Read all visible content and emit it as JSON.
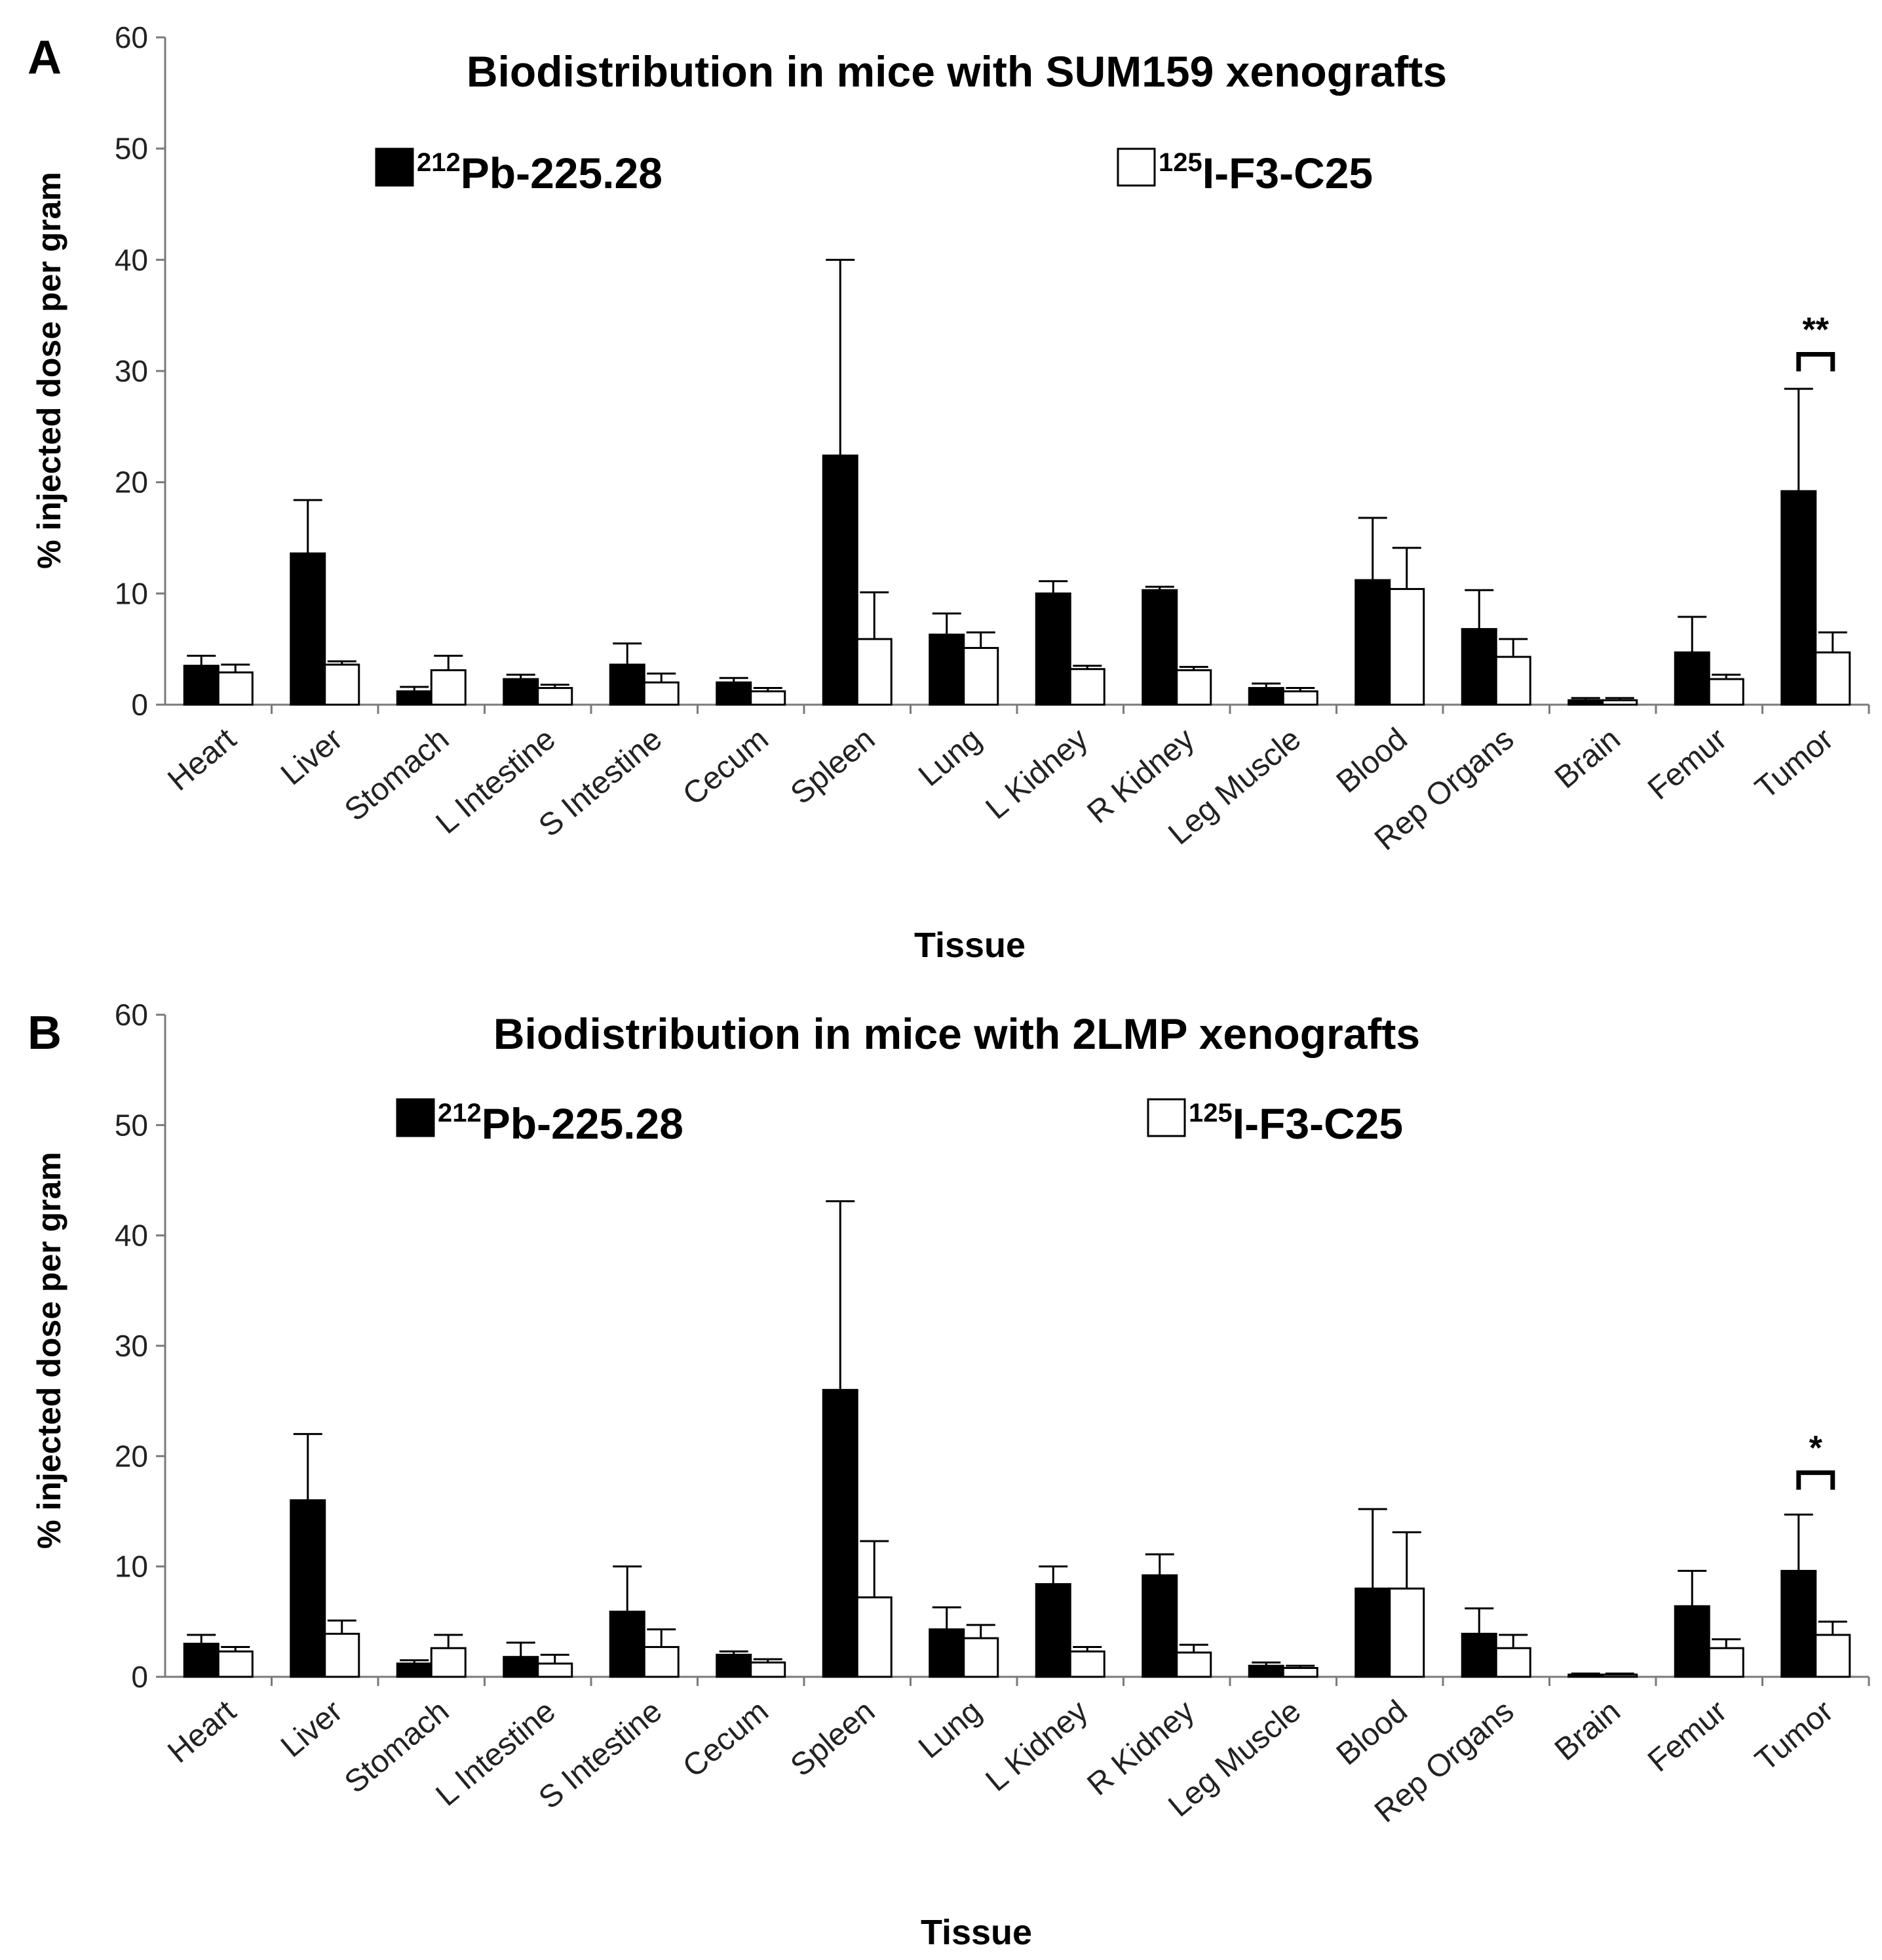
{
  "chart_data": [
    {
      "type": "bar",
      "panel_label": "A",
      "title": "Biodistribution in mice with SUM159 xenografts",
      "xlabel": "Tissue",
      "ylabel": "% injected dose per gram",
      "ylim": [
        0,
        60
      ],
      "yticks": [
        0,
        10,
        20,
        30,
        40,
        50,
        60
      ],
      "grid": false,
      "legend_position": "top",
      "categories": [
        "Heart",
        "Liver",
        "Stomach",
        "L Intestine",
        "S Intestine",
        "Cecum",
        "Spleen",
        "Lung",
        "L Kidney",
        "R Kidney",
        "Leg Muscle",
        "Blood",
        "Rep Organs",
        "Brain",
        "Femur",
        "Tumor"
      ],
      "series": [
        {
          "legend_sup": "212",
          "legend_main": "Pb-225.28",
          "fill": "#000000",
          "values": [
            3.5,
            13.6,
            1.2,
            2.3,
            3.6,
            2.0,
            22.4,
            6.3,
            10.0,
            10.3,
            1.5,
            11.2,
            6.8,
            0.4,
            4.7,
            19.2
          ],
          "errors": [
            0.9,
            4.8,
            0.4,
            0.4,
            1.9,
            0.4,
            17.6,
            1.9,
            1.1,
            0.3,
            0.4,
            5.6,
            3.5,
            0.2,
            3.2,
            9.2
          ]
        },
        {
          "legend_sup": "125",
          "legend_main": "I-F3-C25",
          "fill": "#ffffff",
          "values": [
            2.9,
            3.6,
            3.1,
            1.5,
            2.0,
            1.2,
            5.9,
            5.1,
            3.2,
            3.1,
            1.2,
            10.4,
            4.3,
            0.4,
            2.3,
            4.7
          ],
          "errors": [
            0.7,
            0.3,
            1.3,
            0.3,
            0.8,
            0.3,
            4.2,
            1.4,
            0.3,
            0.3,
            0.3,
            3.7,
            1.6,
            0.2,
            0.4,
            1.8
          ]
        }
      ],
      "significance": {
        "category": "Tumor",
        "label": "**",
        "bracket_y": 31.5
      }
    },
    {
      "type": "bar",
      "panel_label": "B",
      "title": "Biodistribution in mice with 2LMP xenografts",
      "xlabel": "Tissue",
      "ylabel": "% injected dose per gram",
      "ylim": [
        0,
        60
      ],
      "yticks": [
        0,
        10,
        20,
        30,
        40,
        50,
        60
      ],
      "grid": false,
      "legend_position": "top",
      "categories": [
        "Heart",
        "Liver",
        "Stomach",
        "L Intestine",
        "S Intestine",
        "Cecum",
        "Spleen",
        "Lung",
        "L Kidney",
        "R Kidney",
        "Leg Muscle",
        "Blood",
        "Rep Organs",
        "Brain",
        "Femur",
        "Tumor"
      ],
      "series": [
        {
          "legend_sup": "212",
          "legend_main": "Pb-225.28",
          "fill": "#000000",
          "values": [
            3.0,
            16.0,
            1.2,
            1.8,
            5.9,
            2.0,
            26.0,
            4.3,
            8.4,
            9.2,
            1.0,
            8.0,
            3.9,
            0.2,
            6.4,
            9.6
          ],
          "errors": [
            0.8,
            6.0,
            0.3,
            1.3,
            4.1,
            0.3,
            17.1,
            2.0,
            1.6,
            1.9,
            0.3,
            7.2,
            2.3,
            0.1,
            3.2,
            5.1
          ]
        },
        {
          "legend_sup": "125",
          "legend_main": "I-F3-C25",
          "fill": "#ffffff",
          "values": [
            2.3,
            3.9,
            2.6,
            1.2,
            2.7,
            1.3,
            7.2,
            3.5,
            2.3,
            2.2,
            0.8,
            8.0,
            2.6,
            0.2,
            2.6,
            3.8
          ],
          "errors": [
            0.4,
            1.2,
            1.2,
            0.8,
            1.6,
            0.3,
            5.1,
            1.2,
            0.4,
            0.7,
            0.2,
            5.1,
            1.2,
            0.1,
            0.8,
            1.2
          ]
        }
      ],
      "significance": {
        "category": "Tumor",
        "label": "*",
        "bracket_y": 18.5
      }
    }
  ]
}
